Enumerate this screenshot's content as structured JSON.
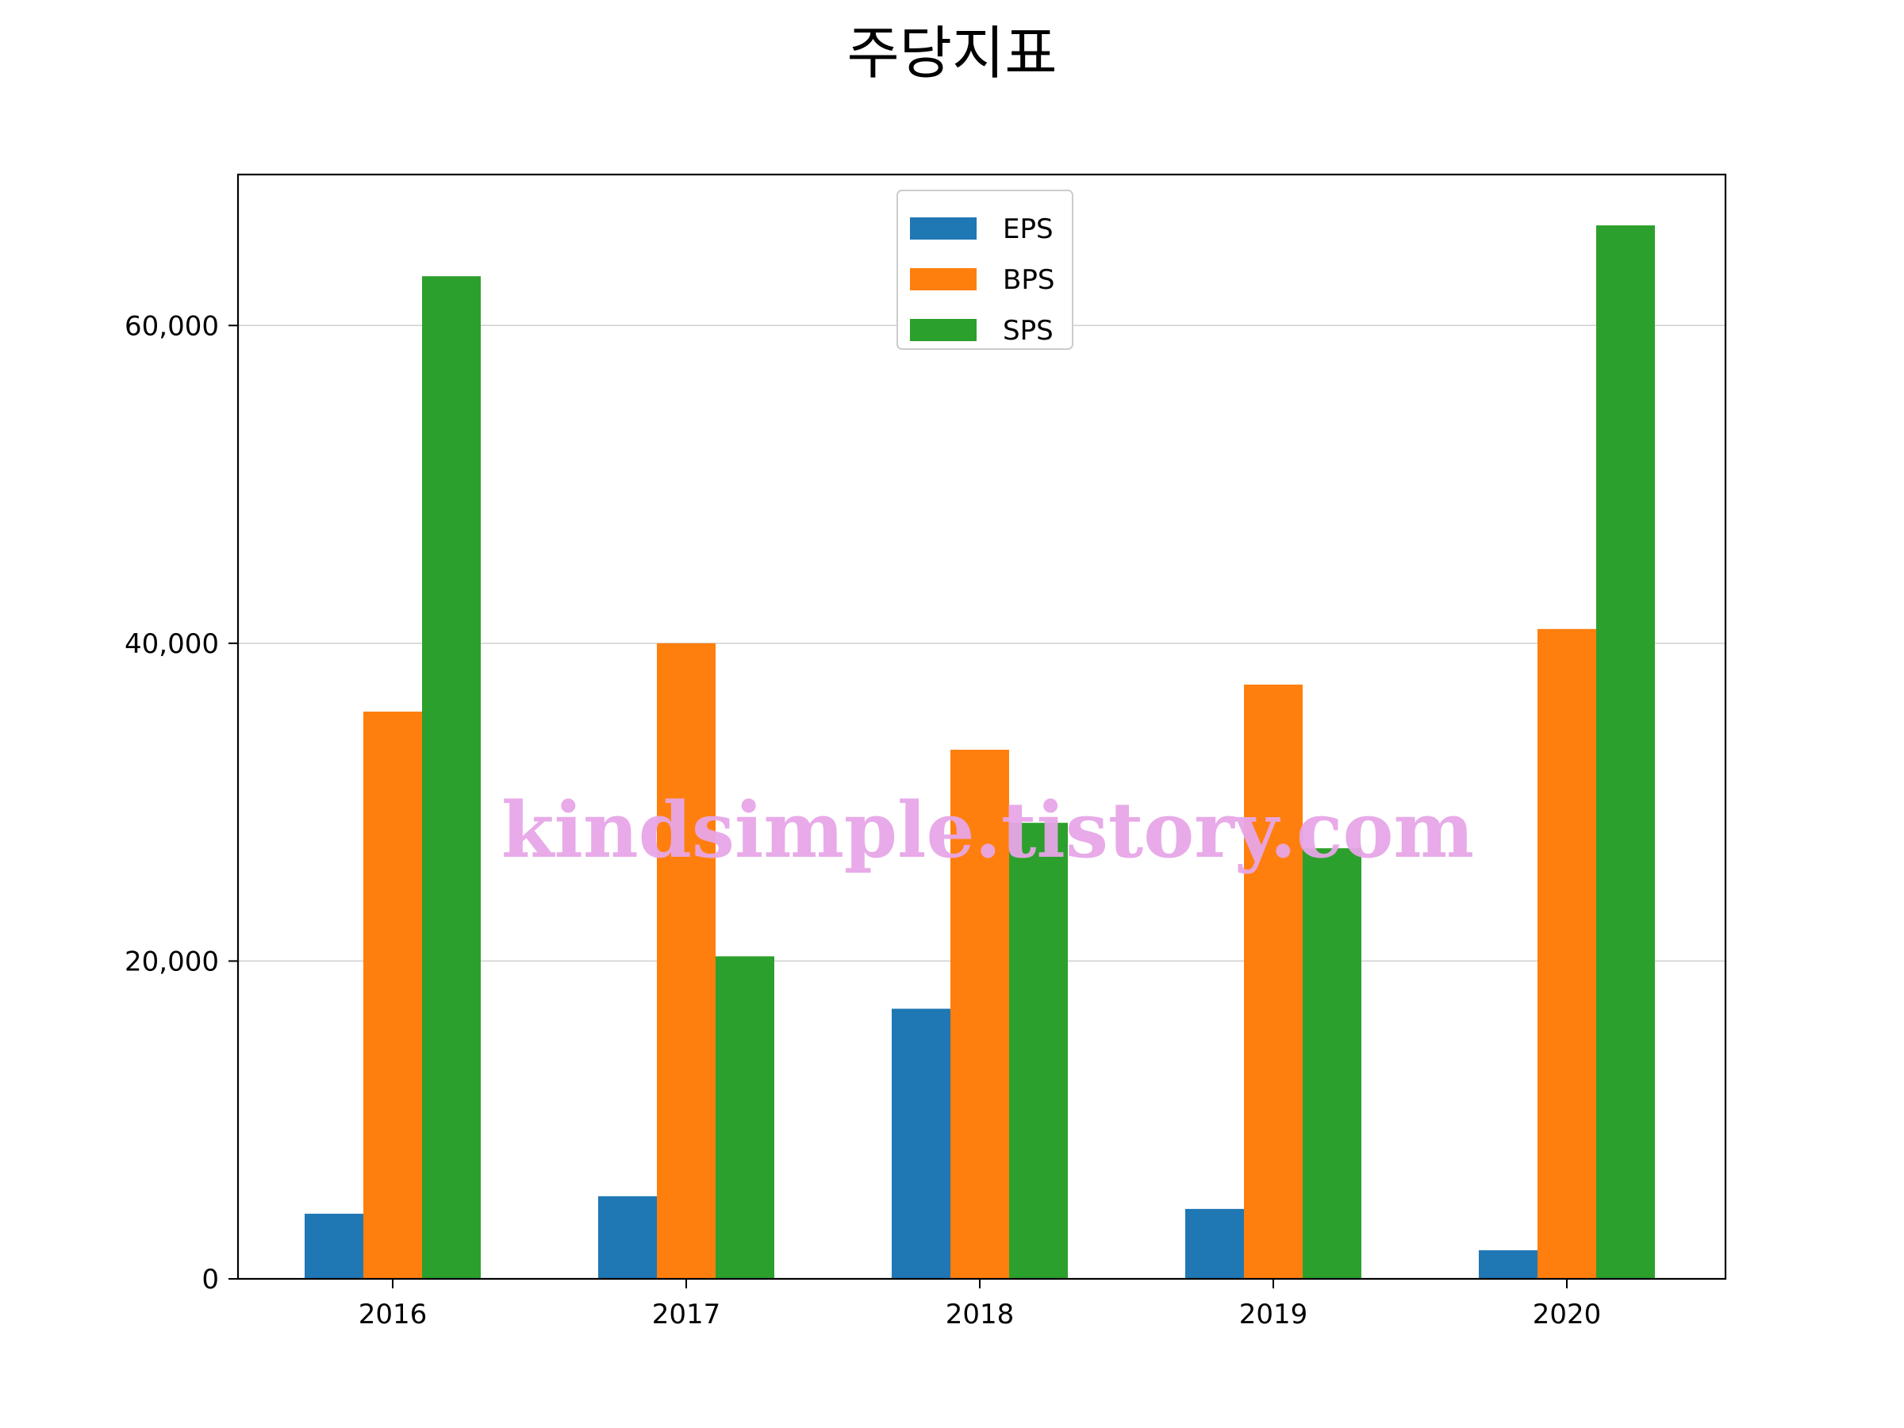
{
  "chart_data": {
    "type": "bar",
    "title": "주당지표",
    "xlabel": "",
    "ylabel": "",
    "categories": [
      "2016",
      "2017",
      "2018",
      "2019",
      "2020"
    ],
    "series": [
      {
        "name": "EPS",
        "color": "#1f77b4",
        "values": [
          4100,
          5200,
          17000,
          4400,
          1800
        ]
      },
      {
        "name": "BPS",
        "color": "#ff7f0e",
        "values": [
          35700,
          40000,
          33300,
          37400,
          40900
        ]
      },
      {
        "name": "SPS",
        "color": "#2ca02c",
        "values": [
          63100,
          20300,
          28700,
          27100,
          66300
        ]
      }
    ],
    "ylim": [
      0,
      69500
    ],
    "yticks": [
      {
        "value": 0,
        "label": "0"
      },
      {
        "value": 20000,
        "label": "20,000"
      },
      {
        "value": 40000,
        "label": "40,000"
      },
      {
        "value": 60000,
        "label": "60,000"
      }
    ],
    "grid": "horizontal",
    "legend_position": "top-center",
    "watermark": "kindsimple.tistory.com"
  }
}
